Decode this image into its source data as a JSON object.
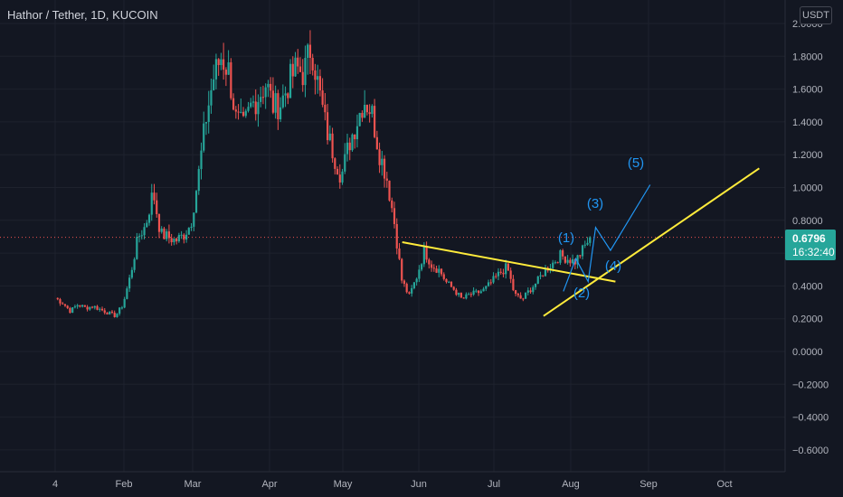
{
  "header": {
    "title": "Hathor / Tether, 1D, KUCOIN"
  },
  "currency_button": {
    "label": "USDT"
  },
  "price_tag": {
    "value": "0.6796",
    "countdown": "16:32:40"
  },
  "colors": {
    "background": "#131722",
    "up": "#26a69a",
    "down": "#ef5350",
    "trendline": "#ffeb3b",
    "wave": "#2196f3",
    "price_line": "#ef5350"
  },
  "chart_data": {
    "type": "candlestick",
    "title": "Hathor / Tether, 1D, KUCOIN",
    "y_ticks": [
      "2.0000",
      "1.8000",
      "1.6000",
      "1.4000",
      "1.2000",
      "1.0000",
      "0.8000",
      "0.6000",
      "0.4000",
      "0.2000",
      "0.0000",
      "−0.2000",
      "−0.4000",
      "−0.6000"
    ],
    "x_ticks": [
      "4",
      "Feb",
      "Mar",
      "Apr",
      "May",
      "Jun",
      "Jul",
      "Aug",
      "Sep",
      "Oct"
    ],
    "ylim": [
      -0.7,
      2.05
    ],
    "last_price": 0.6796,
    "closes": [
      0.31,
      0.28,
      0.23,
      0.27,
      0.25,
      0.26,
      0.24,
      0.22,
      0.2,
      0.27,
      0.45,
      0.68,
      0.75,
      0.96,
      0.7,
      0.68,
      0.66,
      0.69,
      0.76,
      1.05,
      1.4,
      1.65,
      1.78,
      1.7,
      1.4,
      1.35,
      1.48,
      1.54,
      1.62,
      1.47,
      1.5,
      1.62,
      1.71,
      1.68,
      1.85,
      1.58,
      1.34,
      1.18,
      1.05,
      1.25,
      1.38,
      1.52,
      1.45,
      1.2,
      1.05,
      0.78,
      0.42,
      0.32,
      0.44,
      0.6,
      0.51,
      0.48,
      0.4,
      0.36,
      0.3,
      0.33,
      0.34,
      0.36,
      0.41,
      0.46,
      0.5,
      0.33,
      0.3,
      0.36,
      0.41,
      0.48,
      0.52,
      0.57,
      0.55,
      0.53,
      0.6,
      0.68
    ],
    "annotations": {
      "wave_labels": [
        "(1)",
        "(2)",
        "(3)",
        "(4)",
        "(5)"
      ],
      "wave_path": [
        [
          "2022-07-28",
          0.35
        ],
        [
          "2022-08-02",
          0.55
        ],
        [
          "2022-08-07",
          0.41
        ],
        [
          "2022-08-10",
          0.74
        ],
        [
          "2022-08-16",
          0.6
        ],
        [
          "2022-09-01",
          1.0
        ]
      ],
      "descending_trendline": [
        [
          "2022-05-24",
          0.65
        ],
        [
          "2022-08-18",
          0.41
        ]
      ],
      "ascending_trendline": [
        [
          "2022-07-20",
          0.2
        ],
        [
          "2022-10-15",
          1.1
        ]
      ]
    }
  }
}
